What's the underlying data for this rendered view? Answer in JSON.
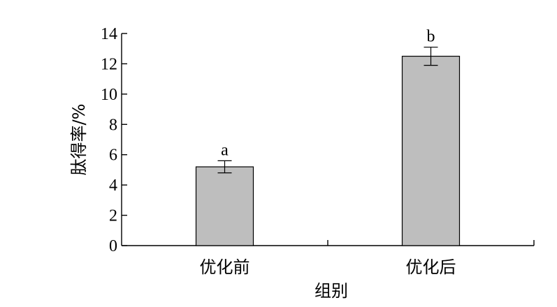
{
  "chart_data": {
    "type": "bar",
    "categories": [
      "优化前",
      "优化后"
    ],
    "values": [
      5.2,
      12.5
    ],
    "errors": [
      0.4,
      0.6
    ],
    "significance": [
      "a",
      "b"
    ],
    "xlabel": "组别",
    "ylabel": "肽得率/%",
    "ylim": [
      0,
      14
    ],
    "yticks": [
      "0",
      "2",
      "4",
      "6",
      "8",
      "10",
      "12",
      "14"
    ],
    "bar_color": "#bebebe",
    "grid": false
  }
}
